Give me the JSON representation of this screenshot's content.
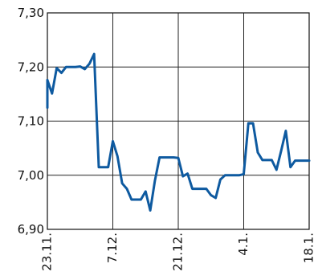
{
  "chart_data": {
    "type": "line",
    "title": "",
    "xlabel": "",
    "ylabel": "",
    "ylim": [
      6.9,
      7.3
    ],
    "y_ticks": [
      6.9,
      7.0,
      7.1,
      7.2,
      7.3
    ],
    "y_tick_labels": [
      "6,90",
      "7,00",
      "7,10",
      "7,20",
      "7,30"
    ],
    "x_tick_labels": [
      "23.11.",
      "7.12.",
      "21.12.",
      "4.1.",
      "18.1."
    ],
    "x_tick_positions": [
      0,
      14,
      28,
      42,
      56
    ],
    "xlim": [
      0,
      56
    ],
    "grid": true,
    "line_color": "#0e5aa0",
    "series": [
      {
        "x": [
          -1,
          0,
          1,
          2,
          3,
          4,
          5,
          6,
          7,
          8,
          9,
          10,
          11,
          12,
          13,
          14,
          15,
          16,
          17,
          18,
          19,
          20,
          21,
          22,
          23,
          24,
          25,
          26,
          27,
          28,
          29,
          30,
          31,
          32,
          33,
          34,
          35,
          36,
          37,
          38,
          39,
          40,
          41,
          42,
          43,
          44,
          45,
          46,
          47,
          48,
          49,
          50,
          51,
          52,
          53,
          54,
          55,
          56
        ],
        "values": [
          7.125,
          7.176,
          7.151,
          7.198,
          7.189,
          7.2,
          7.2,
          7.2,
          7.201,
          7.196,
          7.206,
          7.224,
          7.015,
          7.015,
          7.015,
          7.063,
          7.035,
          6.985,
          6.975,
          6.955,
          6.955,
          6.955,
          6.97,
          6.935,
          6.99,
          7.033,
          7.033,
          7.033,
          7.033,
          7.032,
          6.998,
          7.003,
          6.975,
          6.975,
          6.975,
          6.975,
          6.963,
          6.958,
          6.992,
          7.0,
          7.0,
          7.0,
          7.0,
          7.002,
          7.096,
          7.096,
          7.042,
          7.028,
          7.028,
          7.028,
          7.01,
          7.045,
          7.082,
          7.015,
          7.027,
          7.027,
          7.027,
          7.027
        ]
      }
    ]
  }
}
